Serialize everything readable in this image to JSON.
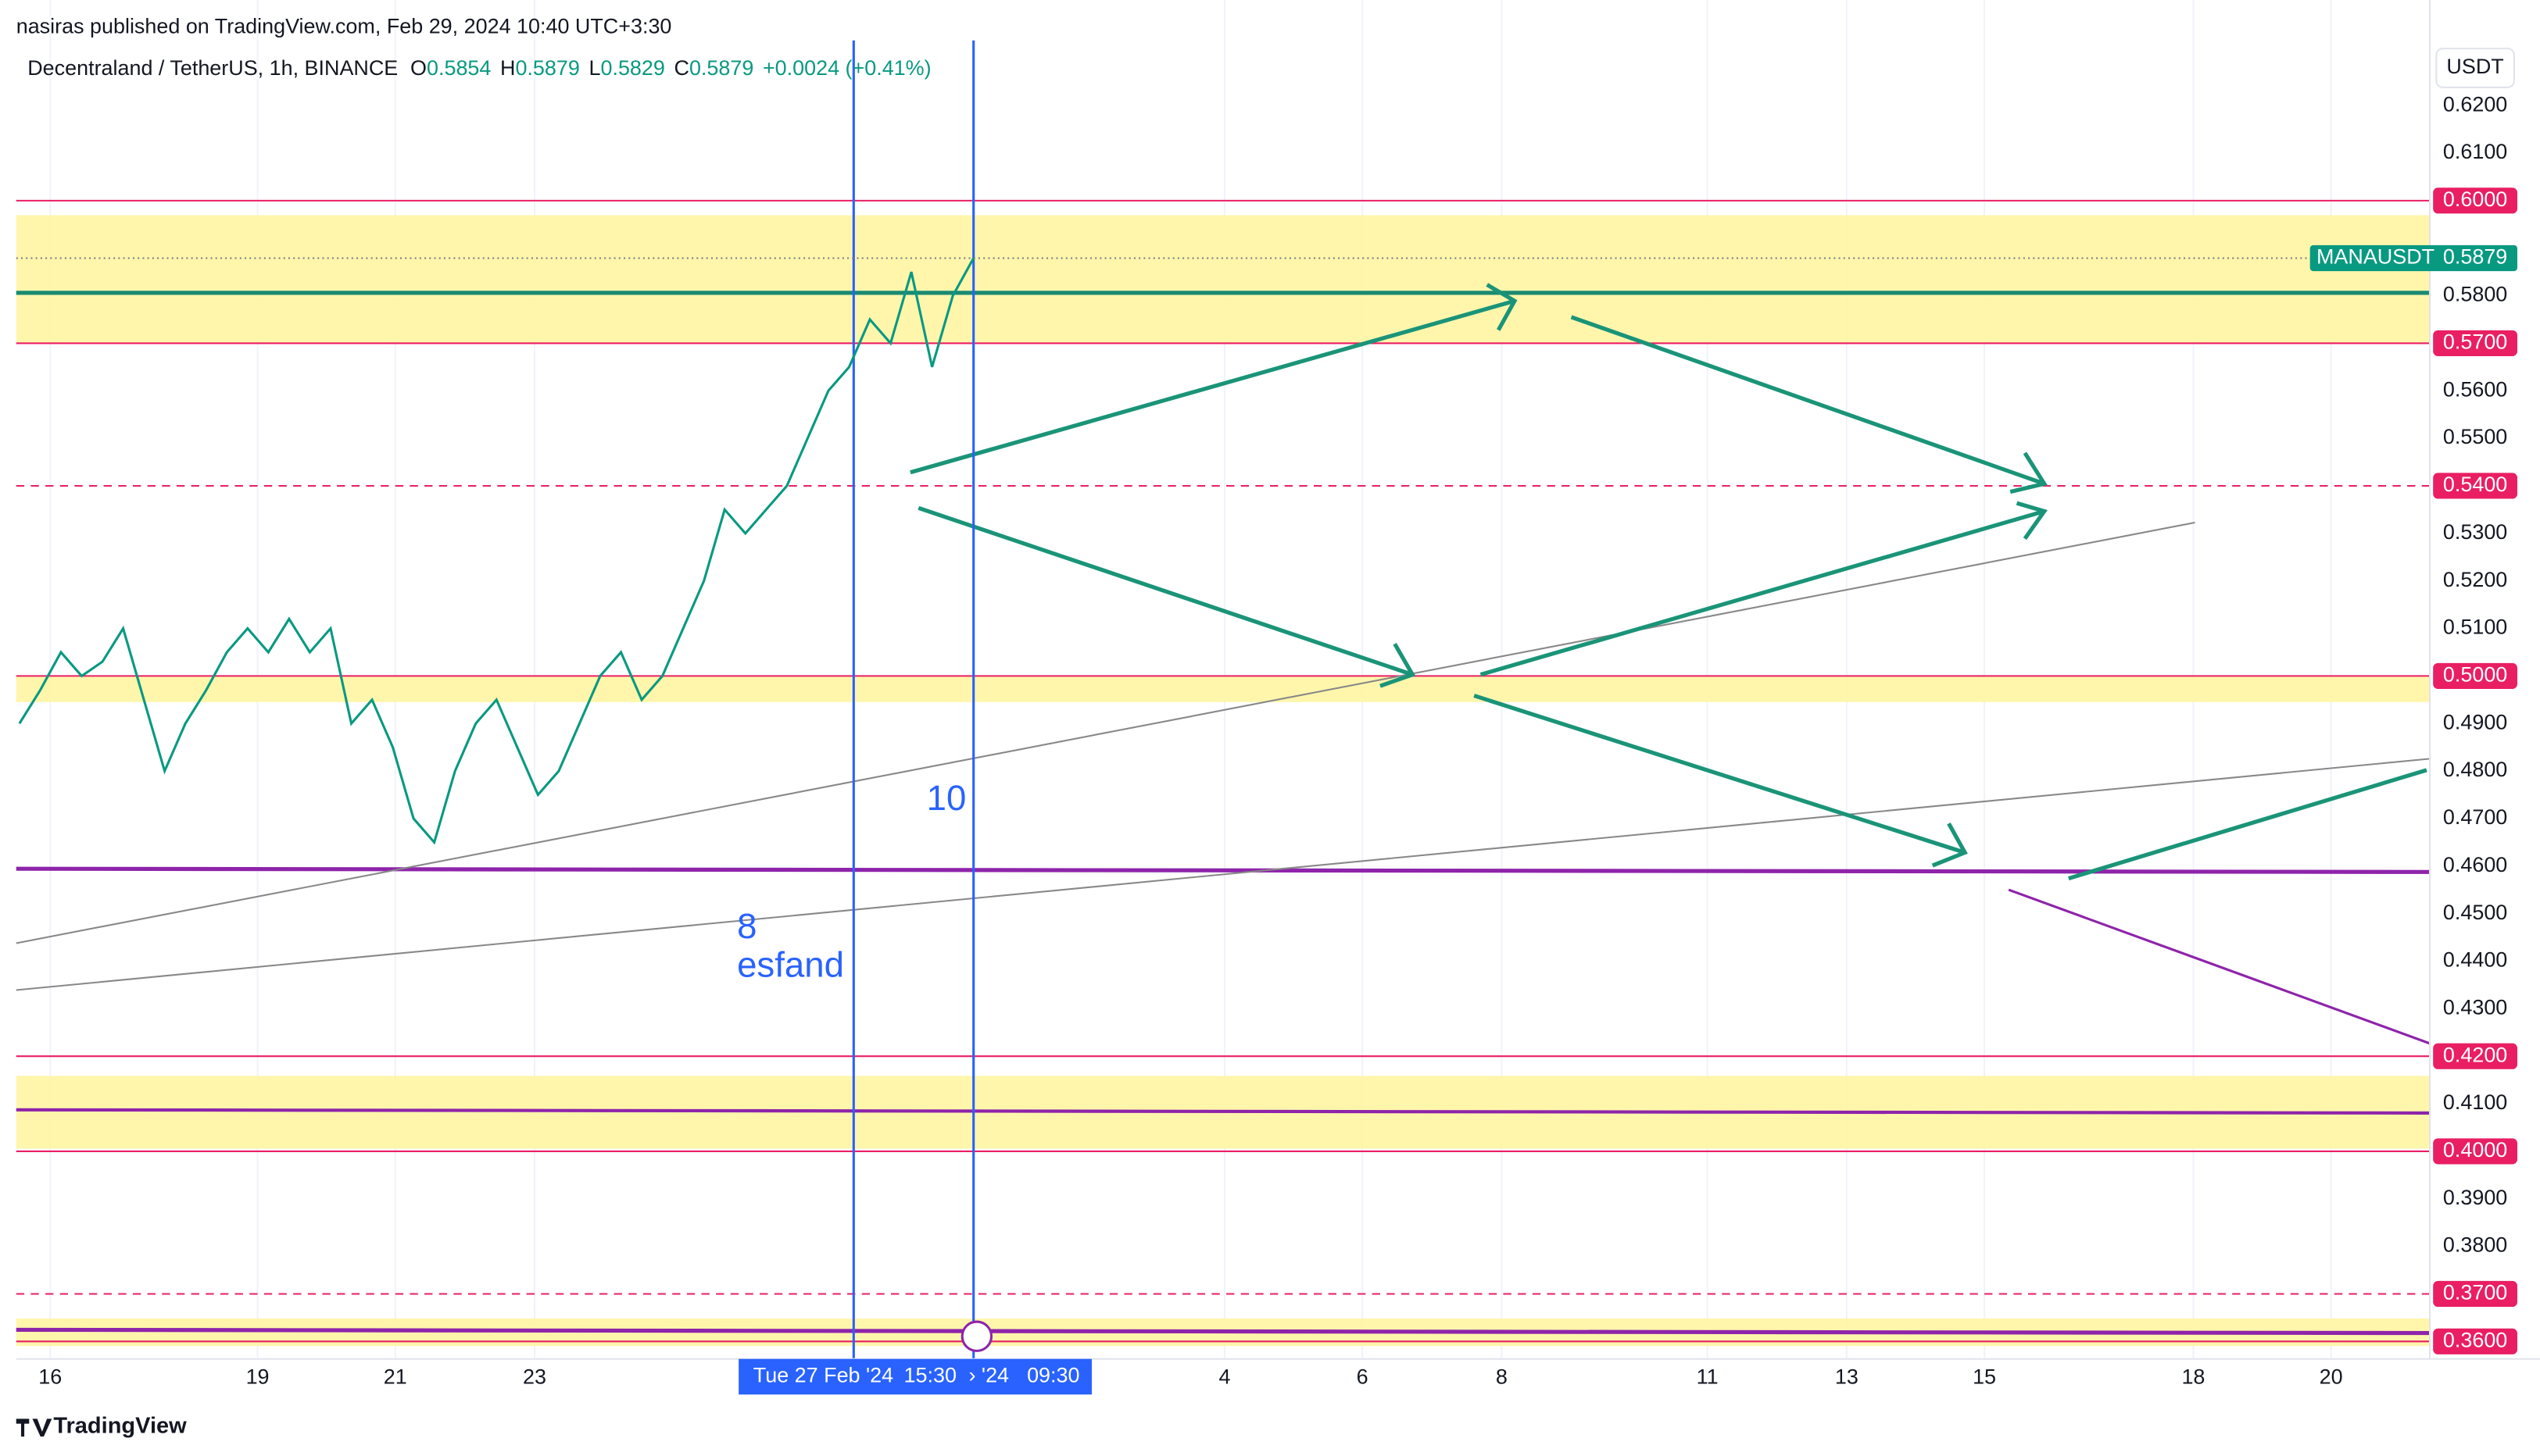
{
  "header": {
    "published": "nasiras published on TradingView.com, Feb 29, 2024 10:40 UTC+3:30",
    "brand": "TradingView"
  },
  "chart_data": {
    "type": "line",
    "symbol": "Decentraland / TetherUS, 1h, BINANCE",
    "ohlc": {
      "o_label": "O",
      "o": 0.5854,
      "h_label": "H",
      "h": 0.5879,
      "l_label": "L",
      "l": 0.5829,
      "c_label": "C",
      "c": 0.5879,
      "change": "+0.0024 (+0.41%)"
    },
    "currency": "USDT",
    "series": [
      {
        "name": "MANAUSDT",
        "color": "#089981",
        "values": [
          0.49,
          0.497,
          0.505,
          0.5,
          0.503,
          0.51,
          0.495,
          0.48,
          0.49,
          0.497,
          0.505,
          0.51,
          0.505,
          0.512,
          0.505,
          0.51,
          0.49,
          0.495,
          0.485,
          0.47,
          0.465,
          0.48,
          0.49,
          0.495,
          0.485,
          0.475,
          0.48,
          0.49,
          0.5,
          0.505,
          0.495,
          0.5,
          0.51,
          0.52,
          0.535,
          0.53,
          0.535,
          0.54,
          0.55,
          0.56,
          0.565,
          0.575,
          0.57,
          0.585,
          0.565,
          0.58,
          0.5879
        ]
      }
    ],
    "last_price": {
      "name": "MANAUSDT",
      "value": 0.5879,
      "label": "0.5879"
    },
    "levels": [
      {
        "value": 0.6,
        "label": "0.6000",
        "style": "solid"
      },
      {
        "value": 0.57,
        "label": "0.5700",
        "style": "solid"
      },
      {
        "value": 0.54,
        "label": "0.5400",
        "style": "dashed"
      },
      {
        "value": 0.5,
        "label": "0.5000",
        "style": "solid"
      },
      {
        "value": 0.42,
        "label": "0.4200",
        "style": "solid"
      },
      {
        "value": 0.4,
        "label": "0.4000",
        "style": "solid"
      },
      {
        "value": 0.37,
        "label": "0.3700",
        "style": "dashed"
      },
      {
        "value": 0.36,
        "label": "0.3600",
        "style": "solid"
      }
    ],
    "ylim": [
      0.357,
      0.632
    ],
    "yticks": [
      {
        "value": 0.62,
        "label": "0.6200"
      },
      {
        "value": 0.61,
        "label": "0.6100"
      },
      {
        "value": 0.58,
        "label": "0.5800"
      },
      {
        "value": 0.56,
        "label": "0.5600"
      },
      {
        "value": 0.55,
        "label": "0.5500"
      },
      {
        "value": 0.53,
        "label": "0.5300"
      },
      {
        "value": 0.52,
        "label": "0.5200"
      },
      {
        "value": 0.51,
        "label": "0.5100"
      },
      {
        "value": 0.49,
        "label": "0.4900"
      },
      {
        "value": 0.48,
        "label": "0.4800"
      },
      {
        "value": 0.47,
        "label": "0.4700"
      },
      {
        "value": 0.46,
        "label": "0.4600"
      },
      {
        "value": 0.45,
        "label": "0.4500"
      },
      {
        "value": 0.44,
        "label": "0.4400"
      },
      {
        "value": 0.43,
        "label": "0.4300"
      },
      {
        "value": 0.41,
        "label": "0.4100"
      },
      {
        "value": 0.39,
        "label": "0.3900"
      },
      {
        "value": 0.38,
        "label": "0.3800"
      }
    ],
    "xticks": [
      "16",
      "19",
      "21",
      "23",
      "4",
      "6",
      "8",
      "11",
      "13",
      "15",
      "18",
      "20"
    ],
    "crosshair": {
      "left": "Tue 27 Feb '24",
      "left_time": "15:30",
      "right": "› '24",
      "right_time": "09:30"
    },
    "annotations": {
      "a1": "8",
      "a2": "esfand",
      "a3": "10"
    },
    "grid": true
  }
}
